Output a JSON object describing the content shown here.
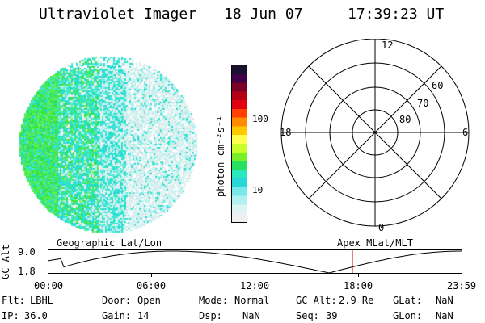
{
  "header": {
    "instrument": "Ultraviolet Imager",
    "date": "18 Jun 07",
    "time": "17:39:23 UT"
  },
  "colorbar": {
    "unit_label": "photon cm⁻²s⁻¹",
    "ticks": [
      "100",
      "10"
    ],
    "colors_top_to_bottom": [
      "#1a1030",
      "#400048",
      "#7a0028",
      "#b40014",
      "#e00010",
      "#ff4000",
      "#ff8c00",
      "#ffc800",
      "#ffff50",
      "#c8ff28",
      "#78f028",
      "#28e060",
      "#28e8c0",
      "#28d8d8",
      "#78e8e8",
      "#b0f0f0",
      "#dcf4f4",
      "#f0f0f0"
    ]
  },
  "polar_plot": {
    "mlt_labels": [
      "12",
      "18",
      "6",
      "0"
    ],
    "lat_labels": [
      "60",
      "70",
      "80"
    ]
  },
  "timeline": {
    "y_axis_label": "GC Alt",
    "y_ticks": [
      "9.0",
      "1.8"
    ],
    "left_caption": "Geographic Lat/Lon",
    "right_caption": "Apex MLat/MLT",
    "x_ticks": [
      "00:00",
      "06:00",
      "12:00",
      "18:00",
      "23:59"
    ],
    "current_time_marker": "17:39"
  },
  "footer": {
    "flt_label": "Flt:",
    "flt_value": "LBHL",
    "ip_label": "IP:",
    "ip_value": "36.0",
    "door_label": "Door:",
    "door_value": "Open",
    "gain_label": "Gain:",
    "gain_value": "14",
    "mode_label": "Mode:",
    "mode_value": "Normal",
    "dsp_label": "Dsp:",
    "dsp_value": "NaN",
    "gcalt_label": "GC Alt:",
    "gcalt_value": "2.9 Re",
    "seq_label": "Seq:",
    "seq_value": "39",
    "glat_label": "GLat:",
    "glat_value": "NaN",
    "glon_label": "GLon:",
    "glon_value": "NaN"
  },
  "colors": {
    "grid": "#000000",
    "orbit_line": "#000000",
    "marker": "#cc0000"
  }
}
